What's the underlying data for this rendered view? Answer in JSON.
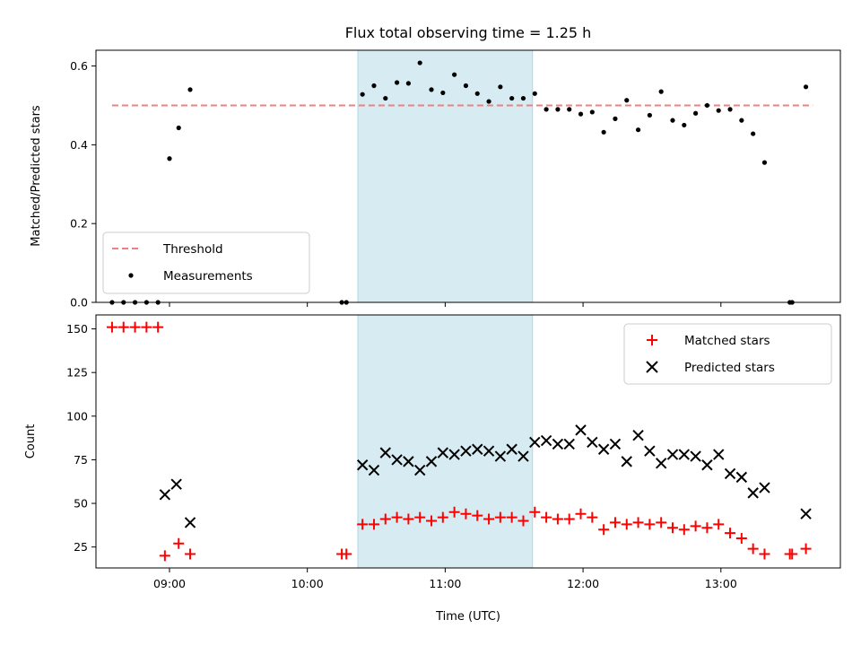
{
  "chart_data": [
    {
      "type": "scatter",
      "title": "Flux total observing time = 1.25 h",
      "xlabel": "",
      "ylabel": "Matched/Predicted stars",
      "x_range": [
        "08:28",
        "13:52"
      ],
      "ylim": [
        0,
        0.64
      ],
      "yticks": [
        "0.0",
        "0.2",
        "0.4",
        "0.6"
      ],
      "shaded_interval": [
        "10:22",
        "11:38"
      ],
      "shade_color": "#add8e6",
      "legend_position": "lower left",
      "threshold": {
        "name": "Threshold",
        "value": 0.5,
        "x_from": "08:35",
        "x_to": "13:40",
        "color": "#f08080"
      },
      "series": [
        {
          "name": "Measurements",
          "marker": "dot",
          "color": "#000000",
          "x": [
            "08:35",
            "08:40",
            "08:45",
            "08:50",
            "08:55",
            "09:00",
            "09:04",
            "09:09",
            "10:15",
            "10:17",
            "10:24",
            "10:29",
            "10:34",
            "10:39",
            "10:44",
            "10:49",
            "10:54",
            "10:59",
            "11:04",
            "11:09",
            "11:14",
            "11:19",
            "11:24",
            "11:29",
            "11:34",
            "11:39",
            "11:44",
            "11:49",
            "11:54",
            "11:59",
            "12:04",
            "12:09",
            "12:14",
            "12:19",
            "12:24",
            "12:29",
            "12:34",
            "12:39",
            "12:44",
            "12:49",
            "12:54",
            "12:59",
            "13:04",
            "13:09",
            "13:14",
            "13:19",
            "13:30",
            "13:31",
            "13:37"
          ],
          "y": [
            0,
            0,
            0,
            0,
            0,
            0.365,
            0.443,
            0.54,
            0,
            0,
            0.528,
            0.55,
            0.518,
            0.558,
            0.556,
            0.608,
            0.54,
            0.532,
            0.578,
            0.55,
            0.53,
            0.51,
            0.547,
            0.518,
            0.518,
            0.53,
            0.49,
            0.49,
            0.49,
            0.478,
            0.483,
            0.432,
            0.466,
            0.513,
            0.438,
            0.475,
            0.535,
            0.462,
            0.45,
            0.48,
            0.5,
            0.487,
            0.49,
            0.462,
            0.428,
            0.355,
            0,
            0,
            0.547
          ]
        }
      ]
    },
    {
      "type": "scatter",
      "title": "",
      "xlabel": "Time (UTC)",
      "ylabel": "Count",
      "x_range": [
        "08:28",
        "13:52"
      ],
      "xticks": [
        "09:00",
        "10:00",
        "11:00",
        "12:00",
        "13:00"
      ],
      "ylim": [
        13,
        158
      ],
      "yticks": [
        "25",
        "50",
        "75",
        "100",
        "125",
        "150"
      ],
      "shaded_interval": [
        "10:22",
        "11:38"
      ],
      "shade_color": "#add8e6",
      "legend_position": "upper right",
      "series": [
        {
          "name": "Matched stars",
          "marker": "plus",
          "color": "#ff0000",
          "x": [
            "08:35",
            "08:40",
            "08:45",
            "08:50",
            "08:55",
            "08:58",
            "09:04",
            "09:09",
            "10:15",
            "10:17",
            "10:24",
            "10:29",
            "10:34",
            "10:39",
            "10:44",
            "10:49",
            "10:54",
            "10:59",
            "11:04",
            "11:09",
            "11:14",
            "11:19",
            "11:24",
            "11:29",
            "11:34",
            "11:39",
            "11:44",
            "11:49",
            "11:54",
            "11:59",
            "12:04",
            "12:09",
            "12:14",
            "12:19",
            "12:24",
            "12:29",
            "12:34",
            "12:39",
            "12:44",
            "12:49",
            "12:54",
            "12:59",
            "13:04",
            "13:09",
            "13:14",
            "13:19",
            "13:30",
            "13:31",
            "13:37"
          ],
          "y": [
            151,
            151,
            151,
            151,
            151,
            20,
            27,
            21,
            21,
            21,
            38,
            38,
            41,
            42,
            41,
            42,
            40,
            42,
            45,
            44,
            43,
            41,
            42,
            42,
            40,
            45,
            42,
            41,
            41,
            44,
            42,
            35,
            39,
            38,
            39,
            38,
            39,
            36,
            35,
            37,
            36,
            38,
            33,
            30,
            24,
            21,
            21,
            21,
            24
          ]
        },
        {
          "name": "Predicted stars",
          "marker": "x",
          "color": "#000000",
          "x": [
            "08:58",
            "09:03",
            "09:09",
            "10:24",
            "10:29",
            "10:34",
            "10:39",
            "10:44",
            "10:49",
            "10:54",
            "10:59",
            "11:04",
            "11:09",
            "11:14",
            "11:19",
            "11:24",
            "11:29",
            "11:34",
            "11:39",
            "11:44",
            "11:49",
            "11:54",
            "11:59",
            "12:04",
            "12:09",
            "12:14",
            "12:19",
            "12:24",
            "12:29",
            "12:34",
            "12:39",
            "12:44",
            "12:49",
            "12:54",
            "12:59",
            "13:04",
            "13:09",
            "13:14",
            "13:19",
            "13:37"
          ],
          "y": [
            55,
            61,
            39,
            72,
            69,
            79,
            75,
            74,
            69,
            74,
            79,
            78,
            80,
            81,
            80,
            77,
            81,
            77,
            85,
            86,
            84,
            84,
            92,
            85,
            81,
            84,
            74,
            89,
            80,
            73,
            78,
            78,
            77,
            72,
            78,
            67,
            65,
            56,
            59,
            44
          ]
        }
      ]
    }
  ]
}
